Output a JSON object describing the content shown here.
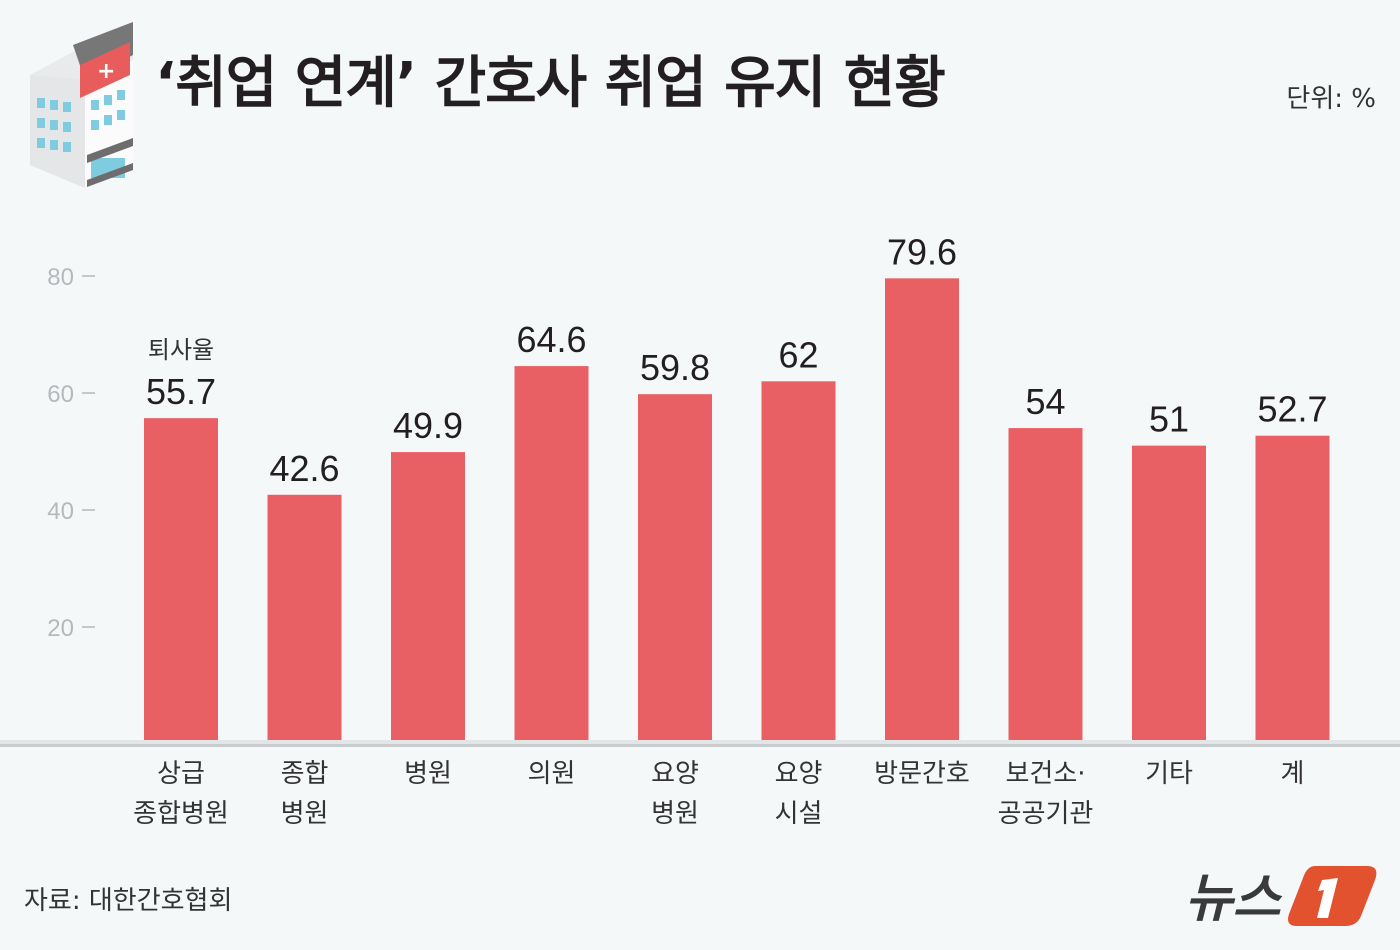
{
  "title": "‘취업 연계’ 간호사 취업 유지 현황",
  "unit": "단위: %",
  "source": "자료: 대한간호협회",
  "logo_text": "뉴스1",
  "colors": {
    "bar": "#e96064",
    "background": "#f4f8f9",
    "logo": "#e2522f"
  },
  "chart_data": {
    "type": "bar",
    "title": "‘취업 연계’ 간호사 취업 유지 현황",
    "series_label": "퇴사율",
    "categories": [
      [
        "상급",
        "종합병원"
      ],
      [
        "종합",
        "병원"
      ],
      [
        "병원"
      ],
      [
        "의원"
      ],
      [
        "요양",
        "병원"
      ],
      [
        "요양",
        "시설"
      ],
      [
        "방문간호"
      ],
      [
        "보건소·",
        "공공기관"
      ],
      [
        "기타"
      ],
      [
        "계"
      ]
    ],
    "values": [
      55.7,
      42.6,
      49.9,
      64.6,
      59.8,
      62,
      79.6,
      54,
      51,
      52.7
    ],
    "value_labels": [
      "55.7",
      "42.6",
      "49.9",
      "64.6",
      "59.8",
      "62",
      "79.6",
      "54",
      "51",
      "52.7"
    ],
    "yticks": [
      20,
      40,
      60,
      80
    ],
    "ylim": [
      0,
      80
    ],
    "ylabel": "",
    "xlabel": "",
    "grid": false
  }
}
